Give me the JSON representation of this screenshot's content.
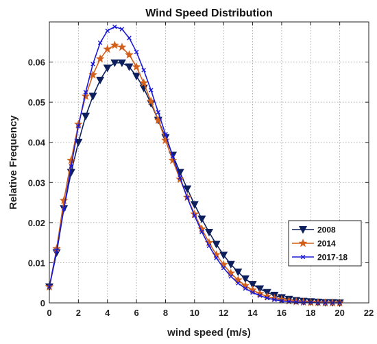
{
  "chart_data": {
    "type": "line",
    "title": "Wind Speed Distribution",
    "xlabel": "wind speed (m/s)",
    "ylabel": "Relative Frequency",
    "xlim": [
      0,
      22
    ],
    "ylim": [
      0,
      0.07
    ],
    "xticks": [
      0,
      2,
      4,
      6,
      8,
      10,
      12,
      14,
      16,
      18,
      20,
      22
    ],
    "yticks": [
      0,
      0.01,
      0.02,
      0.03,
      0.04,
      0.05,
      0.06
    ],
    "ytick_labels": [
      "0",
      "0.01",
      "0.02",
      "0.03",
      "0.04",
      "0.05",
      "0.06"
    ],
    "grid": true,
    "legend_position": "bottom-right",
    "x": [
      0,
      0.5,
      1,
      1.5,
      2,
      2.5,
      3,
      3.5,
      4,
      4.5,
      5,
      5.5,
      6,
      6.5,
      7,
      7.5,
      8,
      8.5,
      9,
      9.5,
      10,
      10.5,
      11,
      11.5,
      12,
      12.5,
      13,
      13.5,
      14,
      14.5,
      15,
      15.5,
      16,
      16.5,
      17,
      17.5,
      18,
      18.5,
      19,
      19.5,
      20
    ],
    "series": [
      {
        "name": "2008",
        "color": "#0d1f5c",
        "marker": "triangle-down",
        "values": [
          0.004,
          0.0125,
          0.0235,
          0.0325,
          0.04,
          0.0465,
          0.0515,
          0.0555,
          0.0585,
          0.0598,
          0.0598,
          0.0588,
          0.0565,
          0.0535,
          0.0497,
          0.0455,
          0.0412,
          0.0368,
          0.0325,
          0.0284,
          0.0245,
          0.0209,
          0.0176,
          0.0146,
          0.0119,
          0.0096,
          0.0077,
          0.006,
          0.0046,
          0.0035,
          0.0026,
          0.0019,
          0.0013,
          0.0009,
          0.0006,
          0.0004,
          0.0003,
          0.0002,
          0.0001,
          0.0001,
          0.0
        ]
      },
      {
        "name": "2014",
        "color": "#d2601a",
        "marker": "star",
        "values": [
          0.004,
          0.0135,
          0.0255,
          0.0355,
          0.0445,
          0.0515,
          0.0568,
          0.0608,
          0.0632,
          0.0642,
          0.0637,
          0.0618,
          0.0588,
          0.0548,
          0.0502,
          0.0455,
          0.0405,
          0.0355,
          0.0308,
          0.0263,
          0.0221,
          0.0184,
          0.015,
          0.012,
          0.0095,
          0.0074,
          0.0057,
          0.0043,
          0.0032,
          0.0023,
          0.0016,
          0.0011,
          0.0008,
          0.0005,
          0.0003,
          0.0002,
          0.0001,
          0.0001,
          0.0,
          0.0,
          0.0
        ]
      },
      {
        "name": "2017-18",
        "color": "#1a1ad6",
        "marker": "x",
        "values": [
          0.004,
          0.013,
          0.0235,
          0.034,
          0.044,
          0.0525,
          0.0595,
          0.0648,
          0.0678,
          0.0688,
          0.0682,
          0.066,
          0.0625,
          0.058,
          0.053,
          0.0475,
          0.042,
          0.0365,
          0.0312,
          0.0262,
          0.0217,
          0.0177,
          0.0142,
          0.0112,
          0.0087,
          0.0066,
          0.0049,
          0.0036,
          0.0026,
          0.0018,
          0.0012,
          0.0008,
          0.0005,
          0.0003,
          0.0002,
          0.0001,
          0.0001,
          0.0,
          0.0,
          0.0,
          0.0
        ]
      }
    ]
  }
}
